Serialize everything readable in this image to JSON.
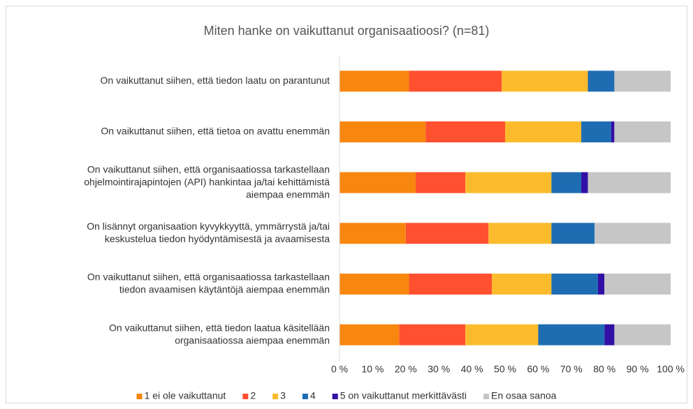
{
  "chart_data": {
    "type": "stacked_barh",
    "title": "Miten hanke on vaikuttanut organisaatioosi? (n=81)",
    "categories": [
      [
        "On vaikuttanut siihen, että tiedon laatu on parantunut"
      ],
      [
        "On vaikuttanut siihen, että tietoa on avattu enemmän"
      ],
      [
        "On vaikuttanut siihen, että organisaatiossa tarkastellaan",
        "ohjelmointirajapintojen (API) hankintaa ja/tai kehittämistä",
        "aiempaa enemmän"
      ],
      [
        "On lisännyt organisaation kyvykkyyttä, ymmärrystä ja/tai",
        "keskustelua tiedon hyödyntämisestä ja avaamisesta"
      ],
      [
        "On vaikuttanut siihen, että organisaatiossa tarkastellaan",
        "tiedon avaamisen käytäntöjä aiempaa enemmän"
      ],
      [
        "On vaikuttanut siihen, että tiedon laatua käsitellään",
        "organisaatiossa aiempaa enemmän"
      ]
    ],
    "series": [
      {
        "name": "1 ei ole vaikuttanut",
        "color": "#f7870f",
        "values": [
          21,
          26,
          23,
          20,
          21,
          18
        ]
      },
      {
        "name": "2",
        "color": "#ff5030",
        "values": [
          28,
          24,
          15,
          25,
          25,
          20
        ]
      },
      {
        "name": "3",
        "color": "#fbbb2c",
        "values": [
          26,
          23,
          26,
          19,
          18,
          22
        ]
      },
      {
        "name": "4",
        "color": "#1e6db3",
        "values": [
          8,
          9,
          9,
          13,
          14,
          20
        ]
      },
      {
        "name": "5 on vaikuttanut merkittävästi",
        "color": "#3210a5",
        "values": [
          0,
          1,
          2,
          0,
          2,
          3
        ]
      },
      {
        "name": "En osaa sanoa",
        "color": "#c6c6c6",
        "values": [
          17,
          17,
          25,
          23,
          20,
          17
        ]
      }
    ],
    "xlim": [
      0,
      100
    ],
    "xticks": [
      {
        "value": 0,
        "label": "0 %"
      },
      {
        "value": 10,
        "label": "10 %"
      },
      {
        "value": 20,
        "label": "20 %"
      },
      {
        "value": 30,
        "label": "30 %"
      },
      {
        "value": 40,
        "label": "40 %"
      },
      {
        "value": 50,
        "label": "50 %"
      },
      {
        "value": 60,
        "label": "60 %"
      },
      {
        "value": 70,
        "label": "70 %"
      },
      {
        "value": 80,
        "label": "80 %"
      },
      {
        "value": 90,
        "label": "90 %"
      },
      {
        "value": 100,
        "label": "100 %"
      }
    ],
    "grid": false,
    "legend": "bottom"
  }
}
